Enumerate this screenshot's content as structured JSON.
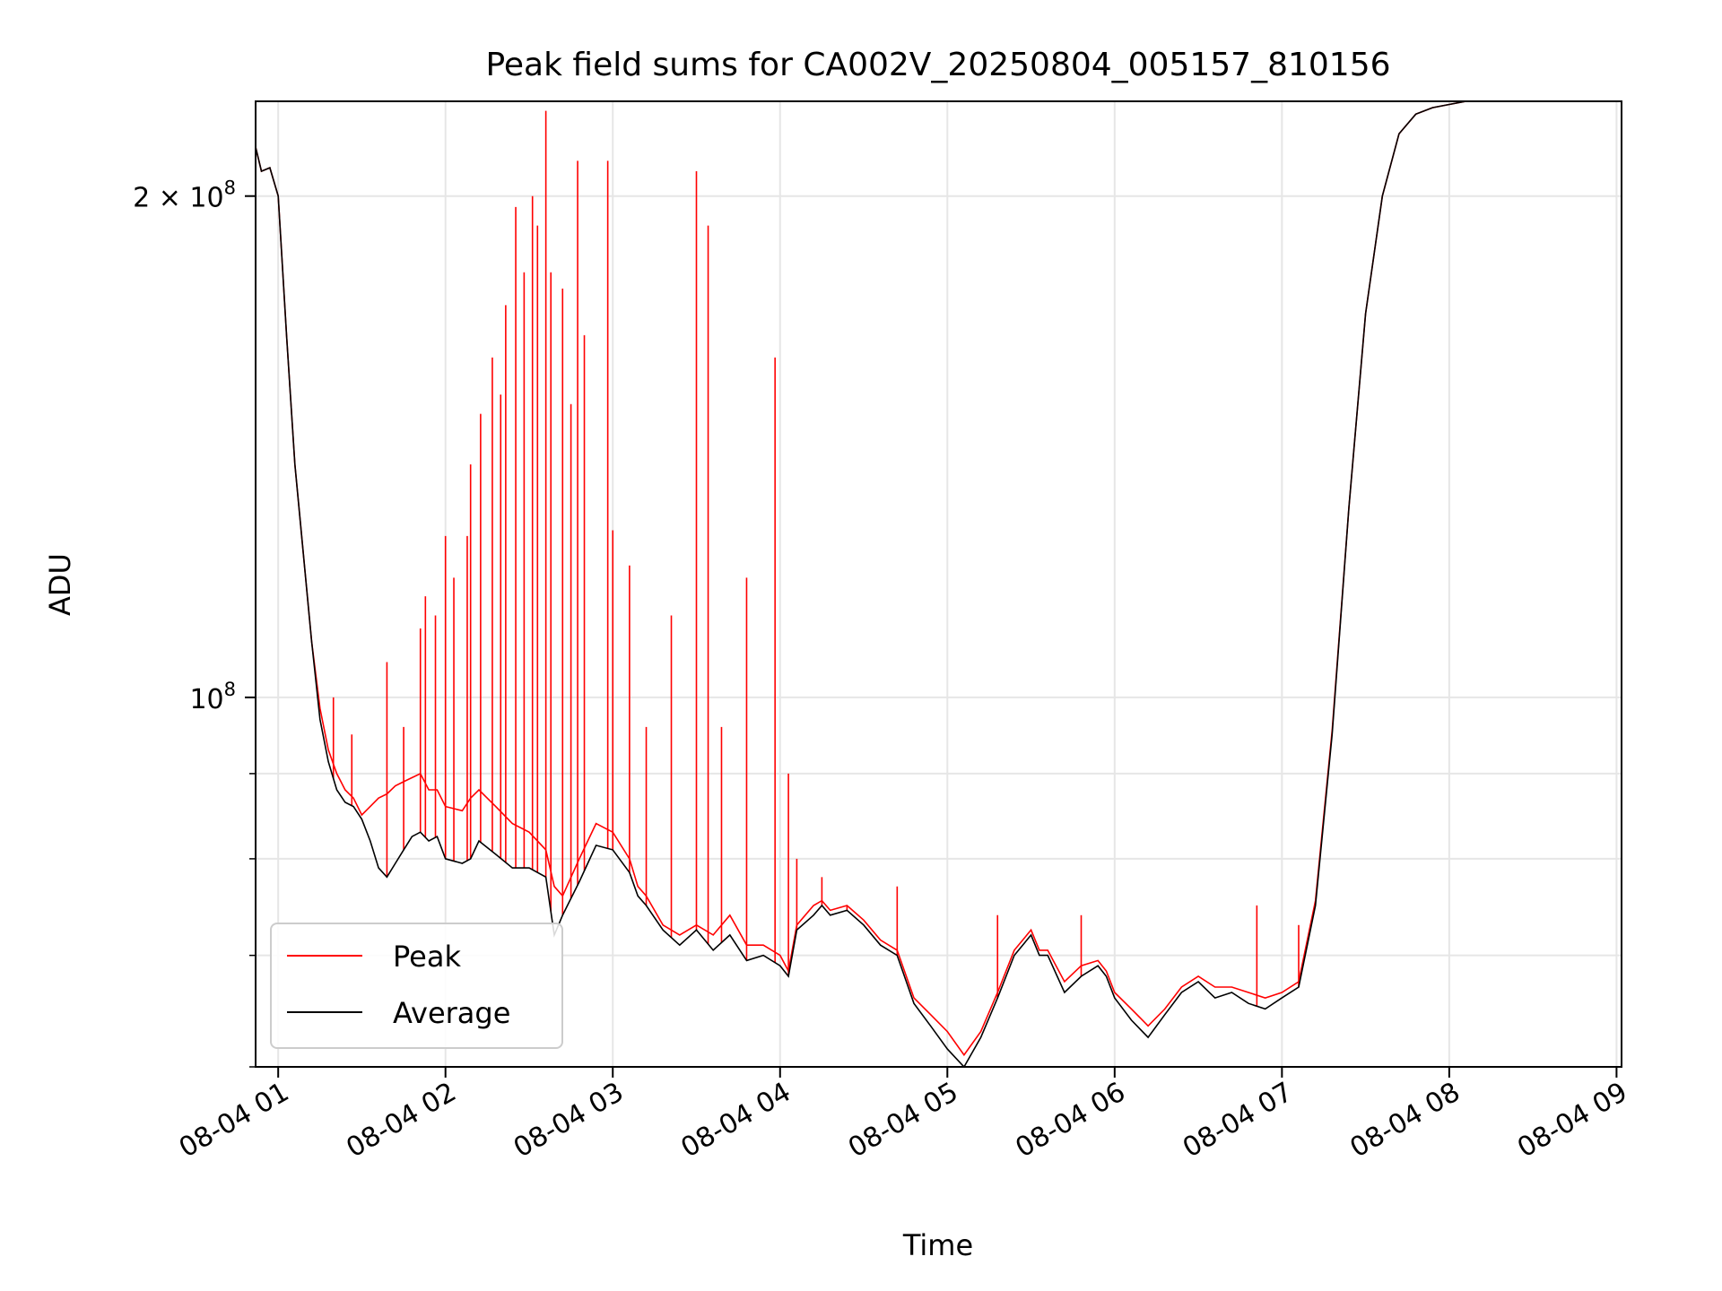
{
  "chart_data": {
    "type": "line",
    "title": "Peak field sums for CA002V_20250804_005157_810156",
    "xlabel": "Time",
    "ylabel": "ADU",
    "x_unit": "hour on 2025-08-04",
    "x_range": [
      0.865,
      9.03
    ],
    "y_scale": "log",
    "ylim": [
      60000000,
      228000000
    ],
    "grid": true,
    "legend_position": "lower-left",
    "x_ticks": [
      {
        "value": 1,
        "label": "08-04 01"
      },
      {
        "value": 2,
        "label": "08-04 02"
      },
      {
        "value": 3,
        "label": "08-04 03"
      },
      {
        "value": 4,
        "label": "08-04 04"
      },
      {
        "value": 5,
        "label": "08-04 05"
      },
      {
        "value": 6,
        "label": "08-04 06"
      },
      {
        "value": 7,
        "label": "08-04 07"
      },
      {
        "value": 8,
        "label": "08-04 08"
      },
      {
        "value": 9,
        "label": "08-04 09"
      }
    ],
    "y_major_ticks": [
      {
        "value": 100000000,
        "base": "10",
        "exp": "8",
        "coef": ""
      },
      {
        "value": 200000000,
        "base": "10",
        "exp": "8",
        "coef": "2 × "
      }
    ],
    "y_minor_ticks": [
      60000000,
      70000000,
      80000000,
      90000000
    ],
    "series": [
      {
        "name": "Average",
        "color": "#000000",
        "x": [
          0.865,
          0.9,
          0.95,
          1.0,
          1.05,
          1.1,
          1.15,
          1.2,
          1.25,
          1.3,
          1.35,
          1.4,
          1.45,
          1.5,
          1.55,
          1.6,
          1.65,
          1.7,
          1.75,
          1.8,
          1.85,
          1.9,
          1.95,
          2.0,
          2.1,
          2.15,
          2.2,
          2.3,
          2.4,
          2.5,
          2.6,
          2.65,
          2.7,
          2.8,
          2.9,
          3.0,
          3.1,
          3.15,
          3.2,
          3.3,
          3.4,
          3.5,
          3.6,
          3.7,
          3.8,
          3.9,
          4.0,
          4.05,
          4.1,
          4.2,
          4.25,
          4.3,
          4.4,
          4.5,
          4.6,
          4.7,
          4.8,
          4.9,
          5.0,
          5.1,
          5.2,
          5.3,
          5.4,
          5.5,
          5.55,
          5.6,
          5.7,
          5.8,
          5.9,
          5.95,
          6.0,
          6.1,
          6.2,
          6.3,
          6.4,
          6.5,
          6.6,
          6.7,
          6.8,
          6.9,
          7.0,
          7.1,
          7.2,
          7.3,
          7.4,
          7.5,
          7.6,
          7.7,
          7.8,
          7.9,
          8.0,
          8.1,
          8.2,
          8.3,
          8.4,
          8.5,
          8.6,
          8.7,
          8.8,
          8.9,
          9.0,
          9.03
        ],
        "y": [
          214000000,
          207000000,
          208000000,
          200000000,
          165000000,
          138000000,
          122000000,
          108000000,
          97000000,
          91500000,
          88000000,
          86500000,
          86000000,
          84500000,
          82000000,
          79000000,
          78000000,
          79500000,
          81000000,
          82500000,
          83000000,
          82000000,
          82500000,
          80000000,
          79500000,
          80000000,
          82000000,
          80500000,
          79000000,
          79000000,
          78000000,
          72000000,
          74000000,
          77500000,
          81500000,
          81000000,
          78500000,
          76000000,
          75000000,
          72500000,
          71000000,
          72500000,
          70500000,
          72000000,
          69500000,
          70000000,
          69000000,
          68000000,
          72500000,
          74000000,
          75000000,
          74000000,
          74500000,
          73000000,
          71000000,
          70000000,
          65500000,
          63500000,
          61500000,
          60000000,
          62500000,
          66000000,
          70000000,
          72000000,
          70000000,
          70000000,
          66500000,
          68000000,
          69000000,
          68000000,
          66000000,
          64000000,
          62500000,
          64500000,
          66500000,
          67500000,
          66000000,
          66500000,
          65500000,
          65000000,
          66000000,
          67000000,
          75000000,
          95000000,
          130000000,
          170000000,
          200000000,
          218000000,
          224000000,
          226000000,
          227000000,
          228000000,
          228000000,
          228000000,
          228000000,
          228000000,
          228000000,
          228000000,
          228000000,
          228000000,
          228000000,
          228000000
        ]
      },
      {
        "name": "Peak",
        "color": "#ff0000",
        "x": [
          0.865,
          0.9,
          0.95,
          1.0,
          1.05,
          1.1,
          1.15,
          1.2,
          1.25,
          1.3,
          1.35,
          1.4,
          1.45,
          1.5,
          1.55,
          1.6,
          1.65,
          1.7,
          1.75,
          1.8,
          1.85,
          1.9,
          1.95,
          2.0,
          2.1,
          2.15,
          2.2,
          2.3,
          2.4,
          2.5,
          2.6,
          2.65,
          2.7,
          2.8,
          2.9,
          3.0,
          3.1,
          3.15,
          3.2,
          3.3,
          3.4,
          3.5,
          3.6,
          3.7,
          3.8,
          3.9,
          4.0,
          4.05,
          4.1,
          4.2,
          4.25,
          4.3,
          4.4,
          4.5,
          4.6,
          4.7,
          4.8,
          4.9,
          5.0,
          5.1,
          5.2,
          5.3,
          5.4,
          5.5,
          5.55,
          5.6,
          5.7,
          5.8,
          5.9,
          5.95,
          6.0,
          6.1,
          6.2,
          6.3,
          6.4,
          6.5,
          6.6,
          6.7,
          6.8,
          6.9,
          7.0,
          7.1,
          7.2,
          7.3,
          7.4,
          7.5,
          7.6,
          7.7,
          7.8,
          7.9,
          8.0,
          8.1,
          8.2,
          8.3,
          8.4,
          8.5,
          8.6,
          8.7,
          8.8,
          8.9,
          9.0,
          9.03
        ],
        "y": [
          214000000,
          207000000,
          208000000,
          200000000,
          165000000,
          138000000,
          122000000,
          108000000,
          98500000,
          93000000,
          90000000,
          88000000,
          87000000,
          85000000,
          86000000,
          87000000,
          87500000,
          88500000,
          89000000,
          89500000,
          90000000,
          88000000,
          88000000,
          86000000,
          85500000,
          87000000,
          88000000,
          86000000,
          84000000,
          83000000,
          81000000,
          77000000,
          76000000,
          80000000,
          84000000,
          83000000,
          80000000,
          77000000,
          76000000,
          73000000,
          72000000,
          73000000,
          72000000,
          74000000,
          71000000,
          71000000,
          70000000,
          68500000,
          73000000,
          75000000,
          75500000,
          74500000,
          75000000,
          73500000,
          71500000,
          70500000,
          66000000,
          64500000,
          63000000,
          61000000,
          63000000,
          66500000,
          70500000,
          72500000,
          70500000,
          70500000,
          67500000,
          69000000,
          69500000,
          68500000,
          66500000,
          65000000,
          63500000,
          65000000,
          67000000,
          68000000,
          67000000,
          67000000,
          66500000,
          66000000,
          66500000,
          67500000,
          75500000,
          95500000,
          130000000,
          170000000,
          200000000,
          218000000,
          224000000,
          226000000,
          227000000,
          228000000,
          228000000,
          228000000,
          228000000,
          228000000,
          228000000,
          228000000,
          228000000,
          228000000,
          228000000,
          228000000
        ],
        "spikes": [
          {
            "x": 1.33,
            "y": 100000000
          },
          {
            "x": 1.44,
            "y": 95000000
          },
          {
            "x": 1.65,
            "y": 105000000
          },
          {
            "x": 1.75,
            "y": 96000000
          },
          {
            "x": 1.85,
            "y": 110000000
          },
          {
            "x": 1.88,
            "y": 115000000
          },
          {
            "x": 1.94,
            "y": 112000000
          },
          {
            "x": 2.0,
            "y": 125000000
          },
          {
            "x": 2.05,
            "y": 118000000
          },
          {
            "x": 2.13,
            "y": 125000000
          },
          {
            "x": 2.15,
            "y": 138000000
          },
          {
            "x": 2.21,
            "y": 148000000
          },
          {
            "x": 2.28,
            "y": 160000000
          },
          {
            "x": 2.33,
            "y": 152000000
          },
          {
            "x": 2.36,
            "y": 172000000
          },
          {
            "x": 2.42,
            "y": 197000000
          },
          {
            "x": 2.47,
            "y": 180000000
          },
          {
            "x": 2.52,
            "y": 200000000
          },
          {
            "x": 2.55,
            "y": 192000000
          },
          {
            "x": 2.6,
            "y": 225000000
          },
          {
            "x": 2.63,
            "y": 180000000
          },
          {
            "x": 2.7,
            "y": 176000000
          },
          {
            "x": 2.75,
            "y": 150000000
          },
          {
            "x": 2.79,
            "y": 210000000
          },
          {
            "x": 2.83,
            "y": 165000000
          },
          {
            "x": 2.97,
            "y": 210000000
          },
          {
            "x": 3.0,
            "y": 126000000
          },
          {
            "x": 3.1,
            "y": 120000000
          },
          {
            "x": 3.2,
            "y": 96000000
          },
          {
            "x": 3.35,
            "y": 112000000
          },
          {
            "x": 3.5,
            "y": 207000000
          },
          {
            "x": 3.57,
            "y": 192000000
          },
          {
            "x": 3.65,
            "y": 96000000
          },
          {
            "x": 3.8,
            "y": 118000000
          },
          {
            "x": 3.97,
            "y": 160000000
          },
          {
            "x": 4.05,
            "y": 90000000
          },
          {
            "x": 4.1,
            "y": 80000000
          },
          {
            "x": 4.25,
            "y": 78000000
          },
          {
            "x": 4.4,
            "y": 75000000
          },
          {
            "x": 4.7,
            "y": 77000000
          },
          {
            "x": 5.3,
            "y": 74000000
          },
          {
            "x": 5.8,
            "y": 74000000
          },
          {
            "x": 6.85,
            "y": 75000000
          },
          {
            "x": 7.1,
            "y": 73000000
          }
        ]
      }
    ]
  }
}
